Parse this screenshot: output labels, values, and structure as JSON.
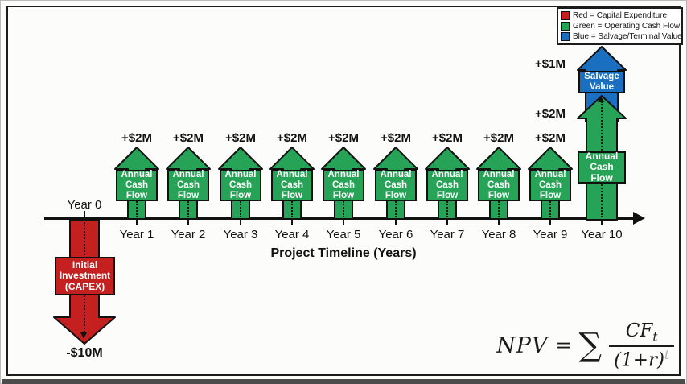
{
  "legend": {
    "items": [
      {
        "label": "Red = Capital Expenditure",
        "color": "#c42020"
      },
      {
        "label": "Green = Operating Cash Flow",
        "color": "#27a357"
      },
      {
        "label": "Blue = Salvage/Terminal Value",
        "color": "#1b6fc0"
      }
    ]
  },
  "timeline": {
    "title": "Project Timeline (Years)",
    "year_labels": [
      "Year 0",
      "Year 1",
      "Year 2",
      "Year 3",
      "Year 4",
      "Year 5",
      "Year 6",
      "Year 7",
      "Year 8",
      "Year 9",
      "Year 10"
    ]
  },
  "capex": {
    "amount": "-$10M",
    "line1": "Initial",
    "line2": "Investment",
    "line3": "(CAPEX)"
  },
  "annual_cash_flow": {
    "amount": "+$2M",
    "line1": "Annual",
    "line2": "Cash",
    "line3": "Flow"
  },
  "salvage": {
    "amount": "+$1M",
    "line1": "Salvage",
    "line2": "Value"
  },
  "formula": {
    "lhs": "NPV",
    "equals": "=",
    "sigma": "∑",
    "numerator_base": "CF",
    "numerator_sub": "t",
    "denominator": "(1+r)",
    "denominator_sup": "t"
  },
  "colors": {
    "capex_red": "#c42020",
    "cashflow_green": "#27a357",
    "salvage_blue": "#1b6fc0"
  }
}
